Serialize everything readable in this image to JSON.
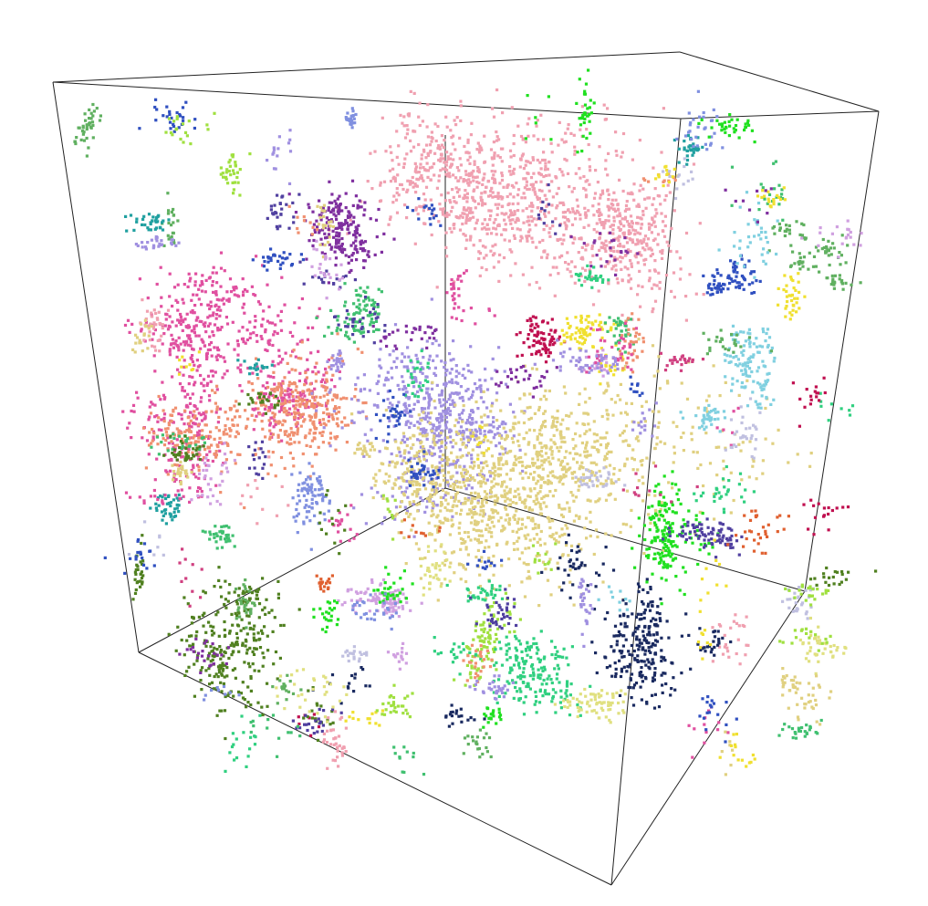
{
  "figure": {
    "kind": "3d-percolation-clusters-in-cube",
    "background": "#ffffff",
    "box_edge_color": "#222222",
    "cluster_palette": [
      "#f0a0b0",
      "#e050a0",
      "#f09070",
      "#a090e0",
      "#e0d080",
      "#7f2f9f",
      "#508020",
      "#1a2a60",
      "#30d080",
      "#c01050",
      "#40c070",
      "#f0e030",
      "#80d0e0",
      "#3050c0",
      "#e06030",
      "#20a0a0",
      "#a0e040",
      "#5040a0",
      "#d0a0e0",
      "#60b060",
      "#20e020",
      "#e0e080",
      "#c0c0e0",
      "#8090e0",
      "#d04080"
    ]
  }
}
